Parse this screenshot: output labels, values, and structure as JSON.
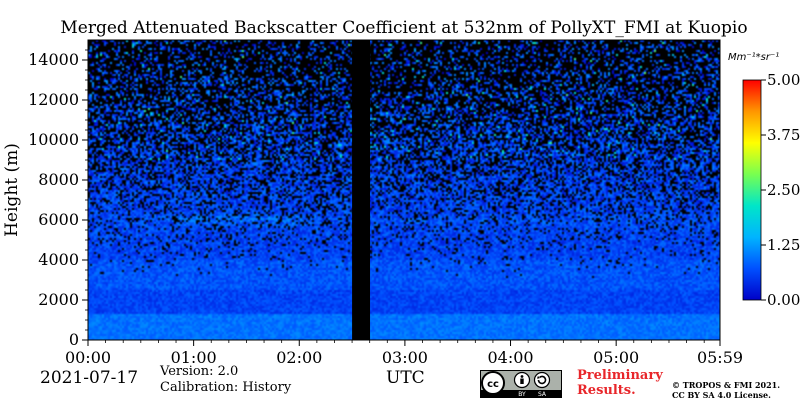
{
  "chart_data": {
    "type": "heatmap",
    "title": "Merged Attenuated Backscatter Coefficient at 532nm of PollyXT_FMI at Kuopio",
    "ylabel": "Height (m)",
    "xlabel": "UTC",
    "x_ticks": [
      "00:00",
      "01:00",
      "02:00",
      "03:00",
      "04:00",
      "05:00",
      "05:59"
    ],
    "x_tick_hours": [
      0,
      1,
      2,
      3,
      4,
      5,
      5.983
    ],
    "xlim": [
      0,
      5.983
    ],
    "y_ticks": [
      0,
      2000,
      4000,
      6000,
      8000,
      10000,
      12000,
      14000
    ],
    "ylim": [
      0,
      15000
    ],
    "colorbar": {
      "unit": "Mm⁻¹*sr⁻¹",
      "range": [
        0,
        5.0
      ],
      "ticks": [
        "0.00",
        "1.25",
        "2.50",
        "3.75",
        "5.00"
      ],
      "colors": [
        "#0000c8",
        "#0050ff",
        "#00b4ff",
        "#00e6c8",
        "#78ff50",
        "#ffff00",
        "#ff9600",
        "#ff0000"
      ]
    },
    "no_data_interval_hours": [
      2.5,
      2.67
    ],
    "features": {
      "boundary_layer_top_m": 1300,
      "aerosol_layer_m": [
        2500,
        4000
      ],
      "elevated_layer_m": 6000,
      "background_value": 0.6
    },
    "grid": false,
    "legend": "colorbar-right"
  },
  "footer": {
    "date": "2021-07-17",
    "version": "Version: 2.0",
    "calibration": "Calibration: History",
    "utc": "UTC",
    "preliminary_line1": "Preliminary",
    "preliminary_line2": "Results.",
    "copyright_line1": "© TROPOS & FMI 2021.",
    "copyright_line2": "CC BY SA 4.0 License.",
    "badge_cc": "cc",
    "badge_by": "BY",
    "badge_sa": "SA"
  }
}
